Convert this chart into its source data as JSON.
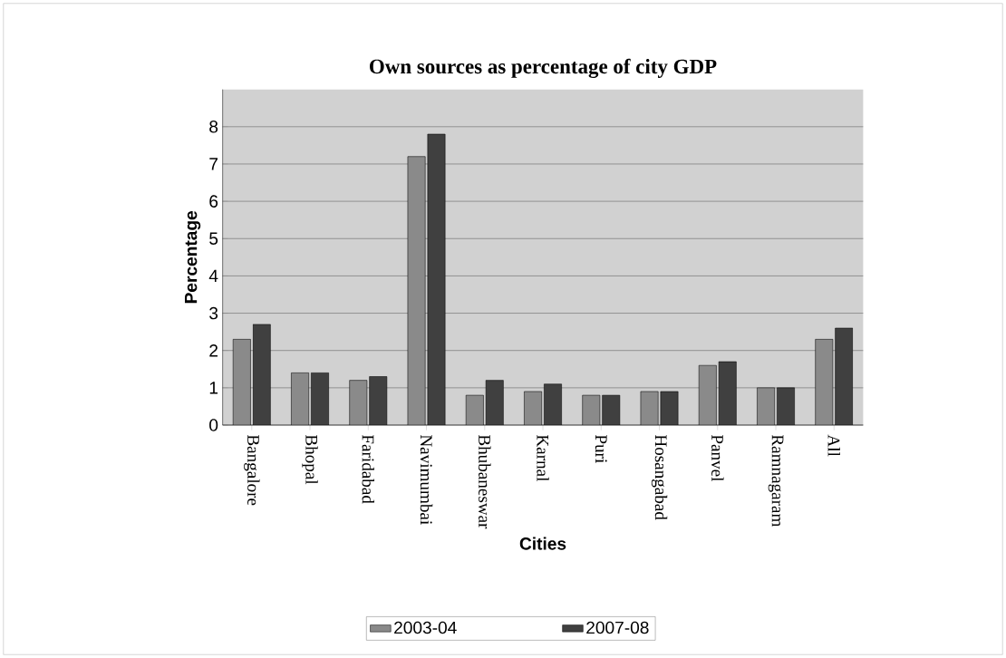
{
  "chart_data": {
    "type": "bar",
    "title": "Own sources as percentage of city GDP",
    "xlabel": "Cities",
    "ylabel": "Percentage",
    "categories": [
      "Bangalore",
      "Bhopal",
      "Faridabad",
      "Navimumbai",
      "Bhubaneswar",
      "Karnal",
      "Puri",
      "Hosangabad",
      "Panvel",
      "Ramnagaram",
      "All"
    ],
    "series": [
      {
        "name": "2003-04",
        "color": "#8a8a8a",
        "values": [
          2.3,
          1.4,
          1.2,
          7.2,
          0.8,
          0.9,
          0.8,
          0.9,
          1.6,
          1.0,
          2.3
        ]
      },
      {
        "name": "2007-08",
        "color": "#404040",
        "values": [
          2.7,
          1.4,
          1.3,
          7.8,
          1.2,
          1.1,
          0.8,
          0.9,
          1.7,
          1.0,
          2.6
        ]
      }
    ],
    "ylim": [
      0,
      9
    ],
    "yticks": [
      0,
      1,
      2,
      3,
      4,
      5,
      6,
      7,
      8
    ],
    "grid": "y",
    "legend": "bottom"
  }
}
